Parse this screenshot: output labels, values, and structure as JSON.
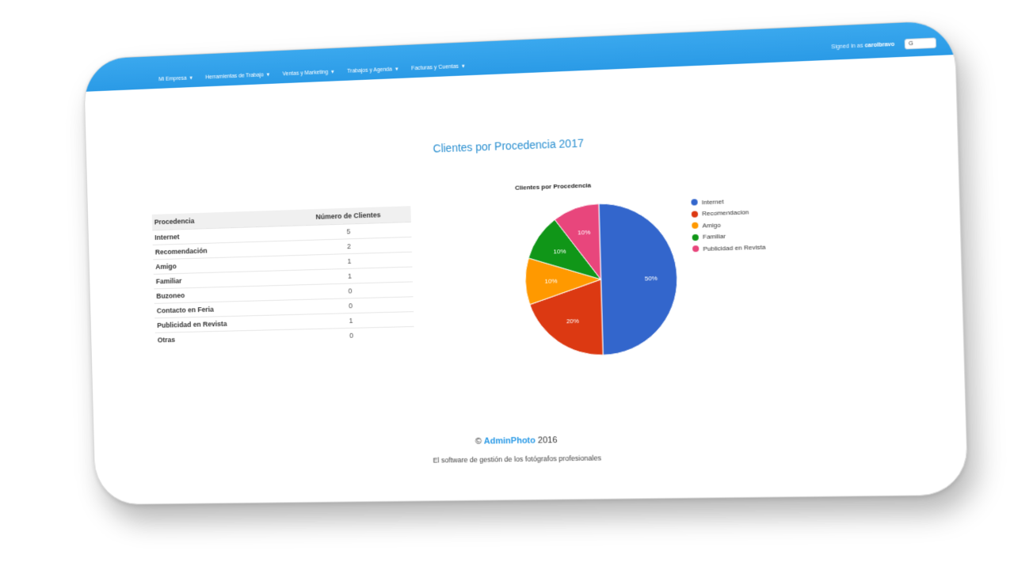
{
  "navbar": {
    "brand": "",
    "items": [
      {
        "label": "Mi Empresa"
      },
      {
        "label": "Herramientas de Trabajo"
      },
      {
        "label": "Ventas y Marketing"
      },
      {
        "label": "Trabajos y Agenda"
      },
      {
        "label": "Facturas y Cuentas"
      }
    ],
    "signed_prefix": "Signed in as",
    "username": "carolbravo",
    "logout_label": "G"
  },
  "page_title": "Clientes por Procedencia 2017",
  "table": {
    "headers": [
      "Procedencia",
      "Número de Clientes"
    ],
    "rows": [
      {
        "label": "Internet",
        "value": "5"
      },
      {
        "label": "Recomendación",
        "value": "2"
      },
      {
        "label": "Amigo",
        "value": "1"
      },
      {
        "label": "Familiar",
        "value": "1"
      },
      {
        "label": "Buzoneo",
        "value": "0"
      },
      {
        "label": "Contacto en Feria",
        "value": "0"
      },
      {
        "label": "Publicidad en Revista",
        "value": "1"
      },
      {
        "label": "Otras",
        "value": "0"
      }
    ]
  },
  "chart_data": {
    "type": "pie",
    "title": "Clientes por Procedencia",
    "categories": [
      "Internet",
      "Recomendacion",
      "Amigo",
      "Familiar",
      "Publicidad en Revista"
    ],
    "values": [
      5,
      2,
      1,
      1,
      1
    ],
    "labels": [
      "50%",
      "20%",
      "10%",
      "10%",
      "10%"
    ],
    "colors": [
      "#3366cc",
      "#dc3912",
      "#ff9900",
      "#109618",
      "#e8467c"
    ],
    "legend_position": "right"
  },
  "footer": {
    "copyright": "©",
    "brand": "AdminPhoto",
    "year": "2016",
    "tagline": "El software de gestión de los fotógrafos profesionales"
  }
}
